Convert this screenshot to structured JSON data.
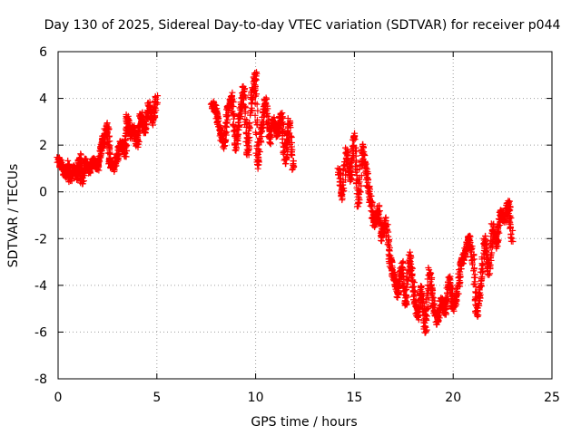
{
  "chart_data": {
    "type": "scatter",
    "title": "Day 130 of 2025, Sidereal Day-to-day VTEC variation (SDTVAR) for receiver p044",
    "xlabel": "GPS time / hours",
    "ylabel": "SDTVAR / TECUs",
    "xlim": [
      0,
      25
    ],
    "ylim": [
      -8,
      6
    ],
    "xticks": [
      "0",
      "5",
      "10",
      "15",
      "20",
      "25"
    ],
    "yticks": [
      "-8",
      "-6",
      "-4",
      "-2",
      "0",
      "2",
      "4",
      "6"
    ],
    "grid": true,
    "marker": "plus",
    "color": "#ff0000",
    "series": [
      {
        "name": "SDTVAR",
        "x": [
          0.0,
          0.2,
          0.4,
          0.5,
          0.6,
          0.8,
          1.0,
          1.1,
          1.2,
          1.4,
          1.6,
          1.8,
          2.0,
          2.2,
          2.3,
          2.5,
          2.6,
          2.8,
          3.0,
          3.2,
          3.4,
          3.5,
          3.7,
          3.8,
          4.0,
          4.2,
          4.4,
          4.6,
          4.8,
          5.0,
          7.8,
          8.0,
          8.2,
          8.4,
          8.6,
          8.8,
          9.0,
          9.2,
          9.4,
          9.6,
          9.8,
          10.0,
          10.1,
          10.3,
          10.5,
          10.7,
          10.9,
          11.1,
          11.3,
          11.5,
          11.7,
          11.9,
          14.2,
          14.4,
          14.6,
          14.8,
          15.0,
          15.2,
          15.4,
          15.6,
          15.8,
          16.0,
          16.2,
          16.4,
          16.6,
          16.8,
          17.0,
          17.2,
          17.4,
          17.6,
          17.8,
          18.0,
          18.2,
          18.4,
          18.6,
          18.8,
          19.0,
          19.2,
          19.4,
          19.6,
          19.8,
          20.0,
          20.2,
          20.4,
          20.6,
          20.8,
          21.0,
          21.2,
          21.4,
          21.6,
          21.8,
          22.0,
          22.2,
          22.4,
          22.6,
          22.8,
          23.0
        ],
        "values": [
          1.4,
          1.1,
          0.7,
          1.2,
          0.5,
          1.0,
          0.6,
          1.5,
          0.4,
          1.3,
          0.9,
          1.4,
          1.0,
          1.9,
          2.3,
          2.8,
          1.3,
          1.0,
          1.5,
          2.1,
          1.6,
          3.2,
          2.4,
          2.7,
          2.0,
          3.3,
          2.6,
          3.7,
          3.0,
          4.0,
          3.8,
          3.4,
          2.6,
          2.0,
          3.6,
          4.1,
          1.9,
          3.3,
          4.4,
          1.6,
          3.9,
          5.1,
          1.1,
          2.7,
          4.0,
          2.2,
          3.1,
          2.4,
          3.3,
          1.3,
          3.0,
          0.9,
          1.0,
          -0.2,
          1.8,
          0.6,
          2.5,
          -0.6,
          1.9,
          0.8,
          -0.3,
          -1.4,
          -0.7,
          -2.0,
          -1.2,
          -2.9,
          -3.6,
          -4.4,
          -3.1,
          -4.9,
          -2.7,
          -4.2,
          -5.4,
          -4.1,
          -5.9,
          -3.4,
          -4.8,
          -5.6,
          -4.6,
          -5.2,
          -3.7,
          -5.0,
          -4.4,
          -3.1,
          -2.6,
          -1.9,
          -2.8,
          -5.3,
          -4.0,
          -2.0,
          -3.5,
          -1.5,
          -2.3,
          -0.9,
          -1.2,
          -0.4,
          -2.1
        ]
      }
    ]
  }
}
